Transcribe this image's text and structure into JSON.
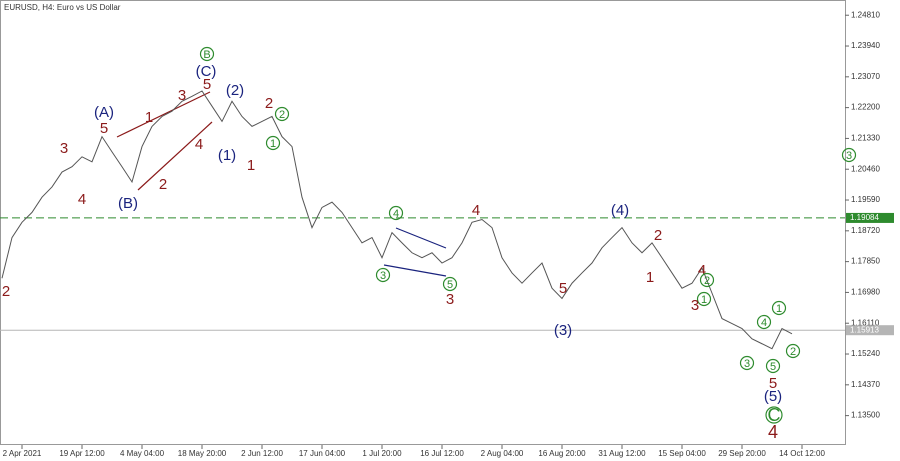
{
  "chart_data": {
    "type": "line",
    "title": "EURUSD, H4:  Euro vs US Dollar",
    "categories": [
      null,
      null,
      "2 Apr 2021",
      null,
      null,
      null,
      null,
      null,
      "19 Apr 12:00",
      null,
      null,
      null,
      null,
      null,
      "4 May 04:00",
      null,
      null,
      null,
      null,
      null,
      "18 May 20:00",
      null,
      null,
      null,
      null,
      null,
      "2 Jun 12:00",
      null,
      null,
      null,
      null,
      null,
      "17 Jun 04:00",
      null,
      null,
      null,
      null,
      null,
      "1 Jul 20:00",
      null,
      null,
      null,
      null,
      null,
      "16 Jul 12:00",
      null,
      null,
      null,
      null,
      null,
      "2 Aug 04:00",
      null,
      null,
      null,
      null,
      null,
      "16 Aug 20:00",
      null,
      null,
      null,
      null,
      null,
      "31 Aug 12:00",
      null,
      null,
      null,
      null,
      null,
      "15 Sep 04:00",
      null,
      null,
      null,
      null,
      null,
      "29 Sep 20:00",
      null,
      null,
      null,
      null,
      null,
      "14 Oct 12:00",
      null,
      null,
      null,
      null
    ],
    "series": [
      {
        "name": "EURUSD",
        "color": "#555555",
        "values": [
          1.1738,
          1.1853,
          1.1896,
          1.1924,
          1.1967,
          1.1996,
          1.2038,
          1.2053,
          1.2081,
          1.2067,
          1.2138,
          1.2095,
          1.2053,
          1.201,
          1.211,
          1.2167,
          1.2195,
          1.221,
          1.2238,
          1.2252,
          1.2267,
          1.2224,
          1.2181,
          1.2238,
          1.2195,
          1.2167,
          1.2181,
          1.2195,
          1.2138,
          1.211,
          1.1967,
          1.1881,
          1.1938,
          1.1953,
          1.1924,
          1.1881,
          1.1838,
          1.1853,
          1.1796,
          1.1867,
          1.1838,
          1.181,
          1.1796,
          1.181,
          1.1781,
          1.1796,
          1.1838,
          1.1896,
          1.1904,
          1.1881,
          1.1796,
          1.1753,
          1.1724,
          1.1753,
          1.1781,
          1.171,
          1.1681,
          1.1724,
          1.1753,
          1.1781,
          1.1824,
          1.1853,
          1.1881,
          1.1838,
          1.181,
          1.1838,
          1.1796,
          1.1753,
          1.171,
          1.1724,
          1.1767,
          1.1696,
          1.1624,
          1.161,
          1.1596,
          1.1567,
          1.1553,
          1.1539,
          1.1596,
          1.1581,
          null,
          null,
          null,
          null,
          null
        ]
      },
      {
        "color": "#aaaaaa",
        "values": [
          null,
          null,
          null,
          null,
          null,
          null,
          null,
          null,
          null,
          null,
          null,
          null,
          null,
          null,
          null,
          null,
          null,
          null,
          null,
          null,
          null,
          null,
          null,
          null,
          null,
          null,
          null,
          null,
          null,
          null,
          null,
          null,
          null,
          null,
          null,
          null,
          null,
          null,
          null,
          null,
          null,
          null,
          null,
          null,
          null,
          null,
          null,
          null,
          null,
          null,
          null,
          null,
          null,
          null,
          null,
          null,
          null,
          null,
          null,
          null,
          null,
          null,
          null,
          null,
          null,
          null,
          null,
          null,
          null,
          null,
          null,
          null,
          null,
          null,
          null,
          null,
          null,
          null,
          null,
          1.1581,
          null,
          null,
          null,
          null,
          1.2058
        ]
      }
    ],
    "ylim": [
      1.1267,
      1.2524
    ],
    "yticks": [
      {
        "value": 1.2481,
        "label": "1.24810"
      },
      {
        "value": 1.2394,
        "label": "1.23940"
      },
      {
        "value": 1.2307,
        "label": "1.23070"
      },
      {
        "value": 1.222,
        "label": "1.22200"
      },
      {
        "value": 1.2133,
        "label": "1.21330"
      },
      {
        "value": 1.2046,
        "label": "1.20460"
      },
      {
        "value": 1.1959,
        "label": "1.19590"
      },
      {
        "value": 1.1872,
        "label": "1.18720"
      },
      {
        "value": 1.1785,
        "label": "1.17850"
      },
      {
        "value": 1.1698,
        "label": "1.16980"
      },
      {
        "value": 1.1611,
        "label": "1.16110"
      },
      {
        "value": 1.1524,
        "label": "1.15240"
      },
      {
        "value": 1.1437,
        "label": "1.14370"
      },
      {
        "value": 1.135,
        "label": "1.13500"
      }
    ],
    "hlines": [
      {
        "value": 1.19084,
        "label": "1.19084",
        "color": "#2e8b2e",
        "style": "dashed"
      },
      {
        "value": 1.15913,
        "label": "1.15913",
        "color": "#b5b5b5",
        "style": "solid"
      }
    ],
    "annotations": [
      {
        "text": "2",
        "color": "#8b1a1a"
      },
      {
        "text": "3",
        "color": "#8b1a1a"
      },
      {
        "text": "4",
        "color": "#8b1a1a"
      },
      {
        "text": "5",
        "color": "#8b1a1a"
      },
      {
        "text": "(A)",
        "color": "#1a237e"
      },
      {
        "text": "(B)",
        "color": "#1a237e"
      },
      {
        "text": "1",
        "color": "#8b1a1a"
      },
      {
        "text": "2",
        "color": "#8b1a1a"
      },
      {
        "text": "3",
        "color": "#8b1a1a"
      },
      {
        "text": "4",
        "color": "#8b1a1a"
      },
      {
        "text": "5",
        "color": "#8b1a1a"
      },
      {
        "text": "(C)",
        "color": "#1a237e"
      },
      {
        "text": "B",
        "color": "#2e8b2e",
        "circled": true
      },
      {
        "text": "(2)",
        "color": "#1a237e"
      },
      {
        "text": "(1)",
        "color": "#1a237e"
      },
      {
        "text": "1",
        "color": "#8b1a1a"
      },
      {
        "text": "2",
        "color": "#8b1a1a"
      },
      {
        "text": "2",
        "color": "#2e8b2e",
        "circled": true
      },
      {
        "text": "1",
        "color": "#2e8b2e",
        "circled": true
      },
      {
        "text": "4",
        "color": "#2e8b2e",
        "circled": true
      },
      {
        "text": "3",
        "color": "#2e8b2e",
        "circled": true
      },
      {
        "text": "5",
        "color": "#2e8b2e",
        "circled": true
      },
      {
        "text": "3",
        "color": "#8b1a1a"
      },
      {
        "text": "4",
        "color": "#8b1a1a"
      },
      {
        "text": "5",
        "color": "#8b1a1a"
      },
      {
        "text": "(3)",
        "color": "#1a237e"
      },
      {
        "text": "(4)",
        "color": "#1a237e"
      },
      {
        "text": "2",
        "color": "#8b1a1a"
      },
      {
        "text": "1",
        "color": "#8b1a1a"
      },
      {
        "text": "4",
        "color": "#8b1a1a"
      },
      {
        "text": "2",
        "color": "#2e8b2e",
        "circled": true
      },
      {
        "text": "1",
        "color": "#2e8b2e",
        "circled": true
      },
      {
        "text": "3",
        "color": "#8b1a1a"
      },
      {
        "text": "3",
        "color": "#2e8b2e",
        "circled": true
      },
      {
        "text": "4",
        "color": "#2e8b2e",
        "circled": true
      },
      {
        "text": "1",
        "color": "#2e8b2e",
        "circled": true
      },
      {
        "text": "2",
        "color": "#2e8b2e",
        "circled": true
      },
      {
        "text": "5",
        "color": "#2e8b2e",
        "circled": true
      },
      {
        "text": "5",
        "color": "#8b1a1a"
      },
      {
        "text": "(5)",
        "color": "#1a237e"
      },
      {
        "text": "C",
        "color": "#2e8b2e",
        "circled": true
      },
      {
        "text": "4",
        "color": "#8b1a1a"
      },
      {
        "text": "3",
        "color": "#2e8b2e",
        "circled": true
      }
    ]
  }
}
